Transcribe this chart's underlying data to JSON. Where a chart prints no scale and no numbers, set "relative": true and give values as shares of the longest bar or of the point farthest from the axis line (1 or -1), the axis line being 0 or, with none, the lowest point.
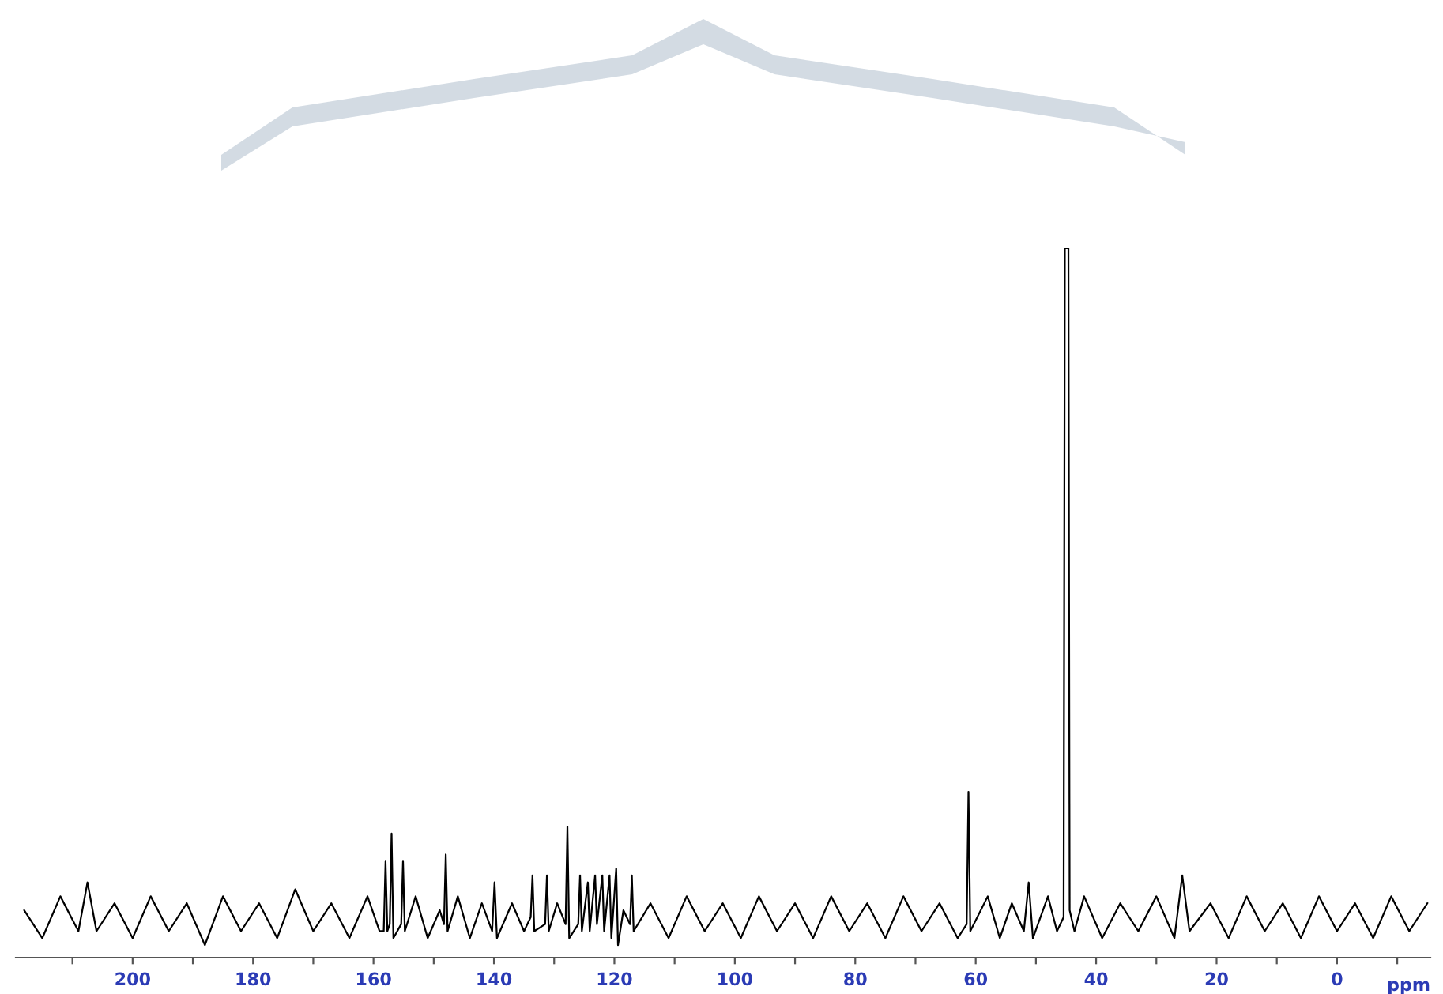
{
  "chart_data": {
    "type": "line",
    "relative": true,
    "xlabel": "ppm",
    "xlim": [
      219.4,
      -15.5
    ],
    "xticks": [
      {
        "value": 210,
        "label": null
      },
      200,
      {
        "value": 190,
        "label": null
      },
      180,
      {
        "value": 170,
        "label": null
      },
      160,
      {
        "value": 150,
        "label": null
      },
      140,
      {
        "value": 130,
        "label": null
      },
      120,
      {
        "value": 110,
        "label": null
      },
      100,
      {
        "value": 90,
        "label": null
      },
      80,
      {
        "value": 70,
        "label": null
      },
      60,
      {
        "value": 50,
        "label": null
      },
      40,
      {
        "value": 30,
        "label": null
      },
      20,
      {
        "value": 10,
        "label": null
      },
      0,
      {
        "value": -10,
        "label": null
      }
    ],
    "grid": false,
    "legend": false,
    "marker": "none",
    "line_style": "solid",
    "x": [
      218,
      215,
      212,
      209,
      207.5,
      206,
      203,
      200,
      197,
      194,
      191,
      188,
      185,
      182,
      179,
      176,
      173,
      170,
      167,
      164,
      161,
      159,
      158.3,
      158.0,
      157.7,
      157.3,
      157.0,
      156.7,
      155.4,
      155.1,
      154.8,
      153,
      151,
      149,
      148.3,
      148.0,
      147.7,
      146,
      144,
      142,
      140.3,
      139.9,
      139.5,
      137,
      135,
      133.9,
      133.6,
      133.3,
      131.5,
      131.2,
      130.9,
      129.5,
      128.1,
      127.8,
      127.5,
      126.0,
      125.7,
      125.4,
      124.4,
      124.1,
      123.2,
      122.9,
      122.0,
      121.7,
      120.8,
      120.5,
      119.7,
      119.4,
      118.5,
      117.4,
      117.1,
      116.8,
      114,
      111,
      108,
      105,
      102,
      99,
      96,
      93,
      90,
      87,
      84,
      81,
      78,
      75,
      72,
      69,
      66,
      63,
      61.5,
      61.2,
      60.9,
      58,
      56,
      54,
      52,
      51.2,
      50.5,
      48,
      46.5,
      45.4,
      45.2,
      44.6,
      44.4,
      43.6,
      42,
      39,
      36,
      33,
      30,
      27,
      25.7,
      24.5,
      21,
      18,
      15,
      12,
      9,
      6,
      3,
      0,
      -3,
      -6,
      -9,
      -12,
      -15
    ],
    "series": [
      {
        "color": "#000000",
        "values": [
          0.05,
          0.01,
          0.07,
          0.02,
          0.09,
          0.02,
          0.06,
          0.01,
          0.07,
          0.02,
          0.06,
          0.0,
          0.07,
          0.02,
          0.06,
          0.01,
          0.08,
          0.02,
          0.06,
          0.01,
          0.07,
          0.02,
          0.02,
          0.12,
          0.02,
          0.03,
          0.16,
          0.01,
          0.03,
          0.12,
          0.02,
          0.07,
          0.01,
          0.05,
          0.03,
          0.13,
          0.02,
          0.07,
          0.01,
          0.06,
          0.02,
          0.09,
          0.01,
          0.06,
          0.02,
          0.04,
          0.1,
          0.02,
          0.03,
          0.1,
          0.02,
          0.06,
          0.03,
          0.17,
          0.01,
          0.03,
          0.1,
          0.02,
          0.09,
          0.02,
          0.1,
          0.03,
          0.1,
          0.02,
          0.1,
          0.01,
          0.11,
          0.0,
          0.05,
          0.03,
          0.1,
          0.02,
          0.06,
          0.01,
          0.07,
          0.02,
          0.06,
          0.01,
          0.07,
          0.02,
          0.06,
          0.01,
          0.07,
          0.02,
          0.06,
          0.01,
          0.07,
          0.02,
          0.06,
          0.01,
          0.03,
          0.22,
          0.02,
          0.07,
          0.01,
          0.06,
          0.02,
          0.09,
          0.01,
          0.07,
          0.02,
          0.04,
          1.0,
          1.0,
          0.05,
          0.02,
          0.07,
          0.01,
          0.06,
          0.02,
          0.07,
          0.01,
          0.1,
          0.02,
          0.06,
          0.01,
          0.07,
          0.02,
          0.06,
          0.01,
          0.07,
          0.02,
          0.06,
          0.01,
          0.07,
          0.02,
          0.06
        ]
      }
    ]
  }
}
